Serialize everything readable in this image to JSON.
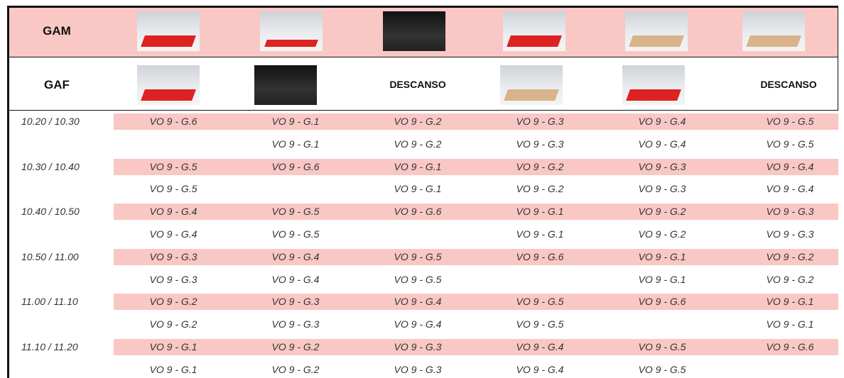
{
  "header": {
    "gam": {
      "label": "GAM"
    },
    "gaf": {
      "label": "GAF",
      "rest": [
        "DESCANSO",
        "DESCANSO"
      ]
    }
  },
  "table": {
    "rows": [
      {
        "time": "10.20 / 10.30",
        "cells": [
          "VO 9 - G.6",
          "VO 9 - G.1",
          "VO 9 - G.2",
          "VO 9 - G.3",
          "VO 9 - G.4",
          "VO 9 - G.5"
        ]
      },
      {
        "cells": [
          null,
          "VO 9 - G.1",
          "VO 9 - G.2",
          "VO 9 - G.3",
          "VO 9 - G.4",
          "VO 9 - G.5"
        ]
      },
      {
        "time": "10.30 / 10.40",
        "cells": [
          "VO 9 - G.5",
          "VO 9 - G.6",
          "VO 9 - G.1",
          "VO 9 - G.2",
          "VO 9 - G.3",
          "VO 9 - G.4"
        ]
      },
      {
        "cells": [
          "VO 9 - G.5",
          null,
          "VO 9 - G.1",
          "VO 9 - G.2",
          "VO 9 - G.3",
          "VO 9 - G.4"
        ]
      },
      {
        "time": "10.40 / 10.50",
        "cells": [
          "VO 9 - G.4",
          "VO 9 - G.5",
          "VO 9 - G.6",
          "VO 9 - G.1",
          "VO 9 - G.2",
          "VO 9 - G.3"
        ]
      },
      {
        "cells": [
          "VO 9 - G.4",
          "VO 9 - G.5",
          null,
          "VO 9 - G.1",
          "VO 9 - G.2",
          "VO 9 - G.3"
        ]
      },
      {
        "time": "10.50 / 11.00",
        "cells": [
          "VO 9 - G.3",
          "VO 9 - G.4",
          "VO 9 - G.5",
          "VO 9 - G.6",
          "VO 9 - G.1",
          "VO 9 - G.2"
        ]
      },
      {
        "cells": [
          "VO 9 - G.3",
          "VO 9 - G.4",
          "VO 9 - G.5",
          null,
          "VO 9 - G.1",
          "VO 9 - G.2"
        ]
      },
      {
        "time": "11.00 / 11.10",
        "cells": [
          "VO 9 - G.2",
          "VO 9 - G.3",
          "VO 9 - G.4",
          "VO 9 - G.5",
          "VO 9 - G.6",
          "VO 9 - G.1"
        ]
      },
      {
        "cells": [
          "VO 9 - G.2",
          "VO 9 - G.3",
          "VO 9 - G.4",
          "VO 9 - G.5",
          null,
          "VO 9 - G.1"
        ]
      },
      {
        "time": "11.10 / 11.20",
        "cells": [
          "VO 9 - G.1",
          "VO 9 - G.2",
          "VO 9 - G.3",
          "VO 9 - G.4",
          "VO 9 - G.5",
          "VO 9 - G.6"
        ]
      },
      {
        "cells": [
          "VO 9 - G.1",
          "VO 9 - G.2",
          "VO 9 - G.3",
          "VO 9 - G.4",
          "VO 9 - G.5",
          null
        ]
      }
    ]
  }
}
